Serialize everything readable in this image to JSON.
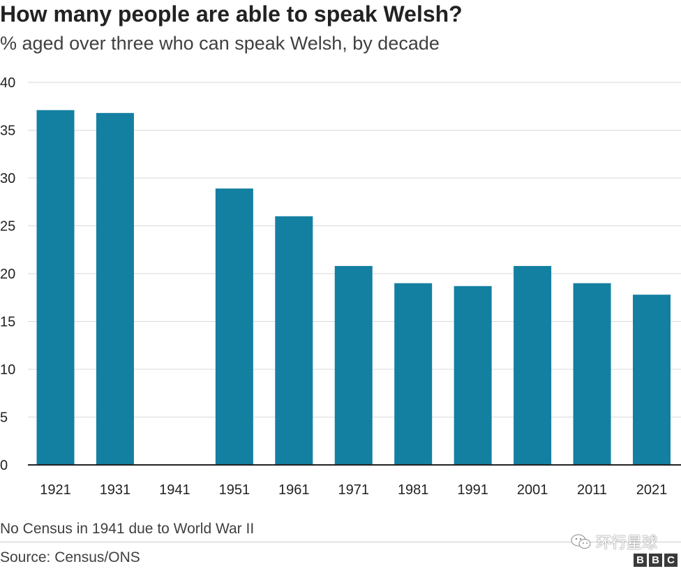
{
  "chart_data": {
    "type": "bar",
    "title": "How many people are able to speak Welsh?",
    "subtitle": "% aged over three who can speak Welsh, by decade",
    "categories": [
      "1921",
      "1931",
      "1941",
      "1951",
      "1961",
      "1971",
      "1981",
      "1991",
      "2001",
      "2011",
      "2021"
    ],
    "values": [
      37.1,
      36.8,
      null,
      28.9,
      26.0,
      20.8,
      19.0,
      18.7,
      20.8,
      19.0,
      17.8
    ],
    "ylim": [
      0,
      40
    ],
    "yticks": [
      "0",
      "5",
      "10",
      "15",
      "20",
      "25",
      "30",
      "35",
      "40"
    ],
    "grid": true,
    "bar_color": "#1380A1",
    "note": "No Census in 1941 due to World War II",
    "source": "Source: Census/ONS"
  },
  "watermark": {
    "text": "环行星球",
    "icon": "wechat-icon"
  },
  "logo": {
    "letters": [
      "B",
      "B",
      "C"
    ]
  }
}
